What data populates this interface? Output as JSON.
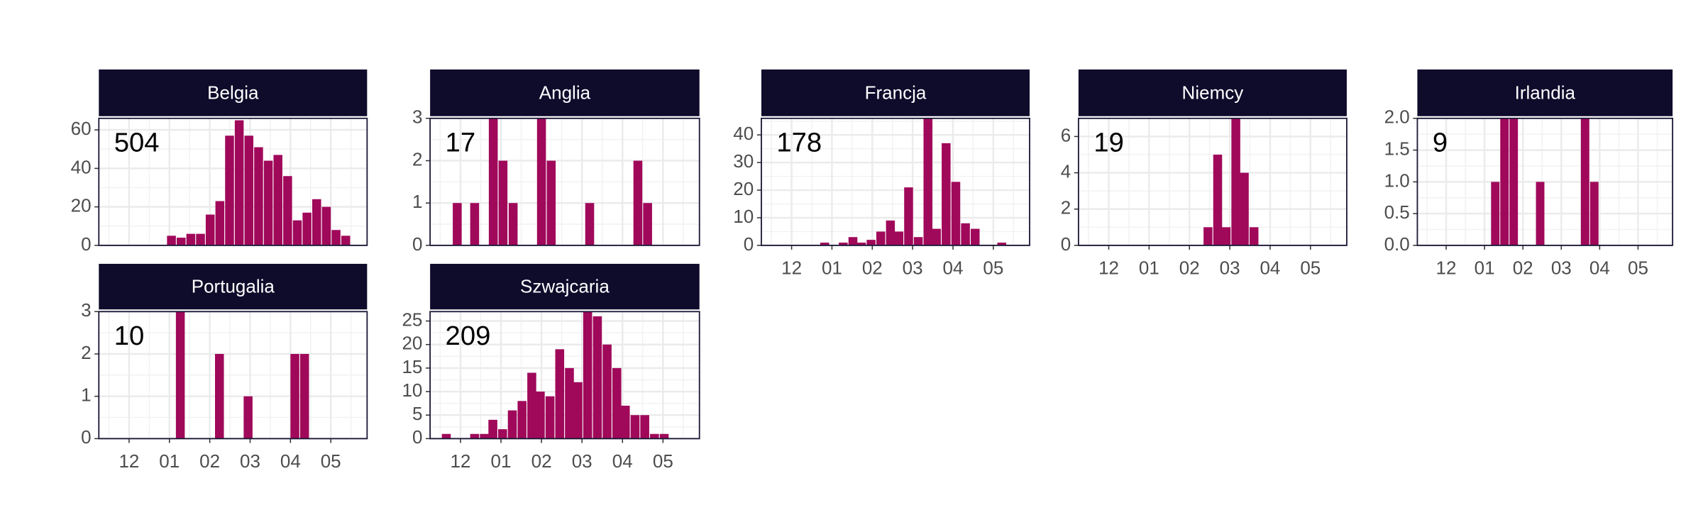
{
  "chart_data": [
    {
      "type": "bar",
      "title": "Belgia",
      "annotation": "504",
      "color": "#a0085a",
      "grid": true,
      "x": [
        1.05,
        1.29,
        1.53,
        1.77,
        2.01,
        2.25,
        2.49,
        2.73,
        2.97,
        3.21,
        3.45,
        3.69,
        3.93,
        4.17,
        4.41,
        4.65,
        4.89,
        5.13,
        5.37
      ],
      "values": [
        5,
        4,
        6,
        6,
        16,
        23,
        57,
        65,
        57,
        51,
        44,
        47,
        36,
        13,
        17,
        24,
        20,
        8,
        5
      ],
      "ylim": [
        0,
        66
      ],
      "yticks": [
        0,
        20,
        40,
        60
      ],
      "xlim": [
        -0.75,
        5.9
      ],
      "xticks": [
        {
          "value": 0,
          "label": "12"
        },
        {
          "value": 1,
          "label": "01"
        },
        {
          "value": 2,
          "label": "02"
        },
        {
          "value": 3,
          "label": "03"
        },
        {
          "value": 4,
          "label": "04"
        },
        {
          "value": 5,
          "label": "05"
        }
      ]
    },
    {
      "type": "bar",
      "title": "Anglia",
      "annotation": "17",
      "color": "#a0085a",
      "grid": true,
      "x": [
        -0.08,
        0.35,
        0.81,
        1.05,
        1.3,
        2.0,
        2.24,
        3.19,
        4.38,
        4.62
      ],
      "values": [
        1,
        1,
        3,
        2,
        1,
        3,
        2,
        1,
        2,
        1
      ],
      "ylim": [
        0,
        3
      ],
      "yticks": [
        0,
        1,
        2,
        3
      ],
      "xlim": [
        -0.75,
        5.9
      ],
      "xticks": [
        {
          "value": 0,
          "label": "12"
        },
        {
          "value": 1,
          "label": "01"
        },
        {
          "value": 2,
          "label": "02"
        },
        {
          "value": 3,
          "label": "03"
        },
        {
          "value": 4,
          "label": "04"
        },
        {
          "value": 5,
          "label": "05"
        }
      ]
    },
    {
      "type": "bar",
      "title": "Francja",
      "annotation": "178",
      "color": "#a0085a",
      "grid": true,
      "x": [
        0.82,
        1.28,
        1.52,
        1.73,
        1.97,
        2.21,
        2.45,
        2.66,
        2.9,
        3.14,
        3.38,
        3.59,
        3.83,
        4.07,
        4.31,
        4.55,
        5.21
      ],
      "values": [
        1,
        1,
        3,
        1,
        2,
        5,
        9,
        5,
        21,
        3,
        46,
        6,
        37,
        23,
        8,
        6,
        1
      ],
      "ylim": [
        0,
        46
      ],
      "yticks": [
        0,
        10,
        20,
        30,
        40
      ],
      "xlim": [
        -0.75,
        5.9
      ],
      "xticks": [
        {
          "value": 0,
          "label": "12"
        },
        {
          "value": 1,
          "label": "01"
        },
        {
          "value": 2,
          "label": "02"
        },
        {
          "value": 3,
          "label": "03"
        },
        {
          "value": 4,
          "label": "04"
        },
        {
          "value": 5,
          "label": "05"
        }
      ]
    },
    {
      "type": "bar",
      "title": "Niemcy",
      "annotation": "19",
      "color": "#a0085a",
      "grid": true,
      "x": [
        2.46,
        2.7,
        2.91,
        3.15,
        3.36,
        3.6
      ],
      "values": [
        1,
        5,
        1,
        7,
        4,
        1
      ],
      "ylim": [
        0,
        7
      ],
      "yticks": [
        0,
        2,
        4,
        6
      ],
      "xlim": [
        -0.75,
        5.9
      ],
      "xticks": [
        {
          "value": 0,
          "label": "12"
        },
        {
          "value": 1,
          "label": "01"
        },
        {
          "value": 2,
          "label": "02"
        },
        {
          "value": 3,
          "label": "03"
        },
        {
          "value": 4,
          "label": "04"
        },
        {
          "value": 5,
          "label": "05"
        }
      ]
    },
    {
      "type": "bar",
      "title": "Irlandia",
      "annotation": "9",
      "color": "#a0085a",
      "grid": true,
      "x": [
        1.28,
        1.52,
        1.76,
        2.45,
        3.62,
        3.86
      ],
      "values": [
        1,
        2,
        2,
        1,
        2,
        1
      ],
      "ylim": [
        0,
        2
      ],
      "yticks": [
        {
          "value": 0,
          "label": "0.0"
        },
        0.5,
        {
          "value": 1,
          "label": "1.0"
        },
        1.5,
        {
          "value": 2,
          "label": "2.0"
        }
      ],
      "xlim": [
        -0.75,
        5.9
      ],
      "xticks": [
        {
          "value": 0,
          "label": "12"
        },
        {
          "value": 1,
          "label": "01"
        },
        {
          "value": 2,
          "label": "02"
        },
        {
          "value": 3,
          "label": "03"
        },
        {
          "value": 4,
          "label": "04"
        },
        {
          "value": 5,
          "label": "05"
        }
      ]
    },
    {
      "type": "bar",
      "title": "Portugalia",
      "annotation": "10",
      "color": "#a0085a",
      "grid": true,
      "x": [
        1.27,
        2.24,
        2.95,
        4.11,
        4.35
      ],
      "values": [
        3,
        2,
        1,
        2,
        2
      ],
      "ylim": [
        0,
        3
      ],
      "yticks": [
        0,
        1,
        2,
        3
      ],
      "xlim": [
        -0.75,
        5.9
      ],
      "xticks": [
        {
          "value": 0,
          "label": "12"
        },
        {
          "value": 1,
          "label": "01"
        },
        {
          "value": 2,
          "label": "02"
        },
        {
          "value": 3,
          "label": "03"
        },
        {
          "value": 4,
          "label": "04"
        },
        {
          "value": 5,
          "label": "05"
        }
      ]
    },
    {
      "type": "bar",
      "title": "Szwajcaria",
      "annotation": "209",
      "color": "#a0085a",
      "grid": true,
      "x": [
        -0.35,
        0.35,
        0.59,
        0.8,
        1.04,
        1.28,
        1.52,
        1.76,
        1.97,
        2.21,
        2.45,
        2.69,
        2.9,
        3.14,
        3.38,
        3.62,
        3.86,
        4.07,
        4.31,
        4.55,
        4.79,
        5.03
      ],
      "values": [
        1,
        1,
        1,
        4,
        2,
        6,
        8,
        14,
        10,
        9,
        19,
        15,
        12,
        27,
        26,
        20,
        15,
        7,
        5,
        5,
        1,
        1
      ],
      "ylim": [
        0,
        27
      ],
      "yticks": [
        0,
        5,
        10,
        15,
        20,
        25
      ],
      "xlim": [
        -0.75,
        5.9
      ],
      "xticks": [
        {
          "value": 0,
          "label": "12"
        },
        {
          "value": 1,
          "label": "01"
        },
        {
          "value": 2,
          "label": "02"
        },
        {
          "value": 3,
          "label": "03"
        },
        {
          "value": 4,
          "label": "04"
        },
        {
          "value": 5,
          "label": "05"
        }
      ]
    }
  ]
}
